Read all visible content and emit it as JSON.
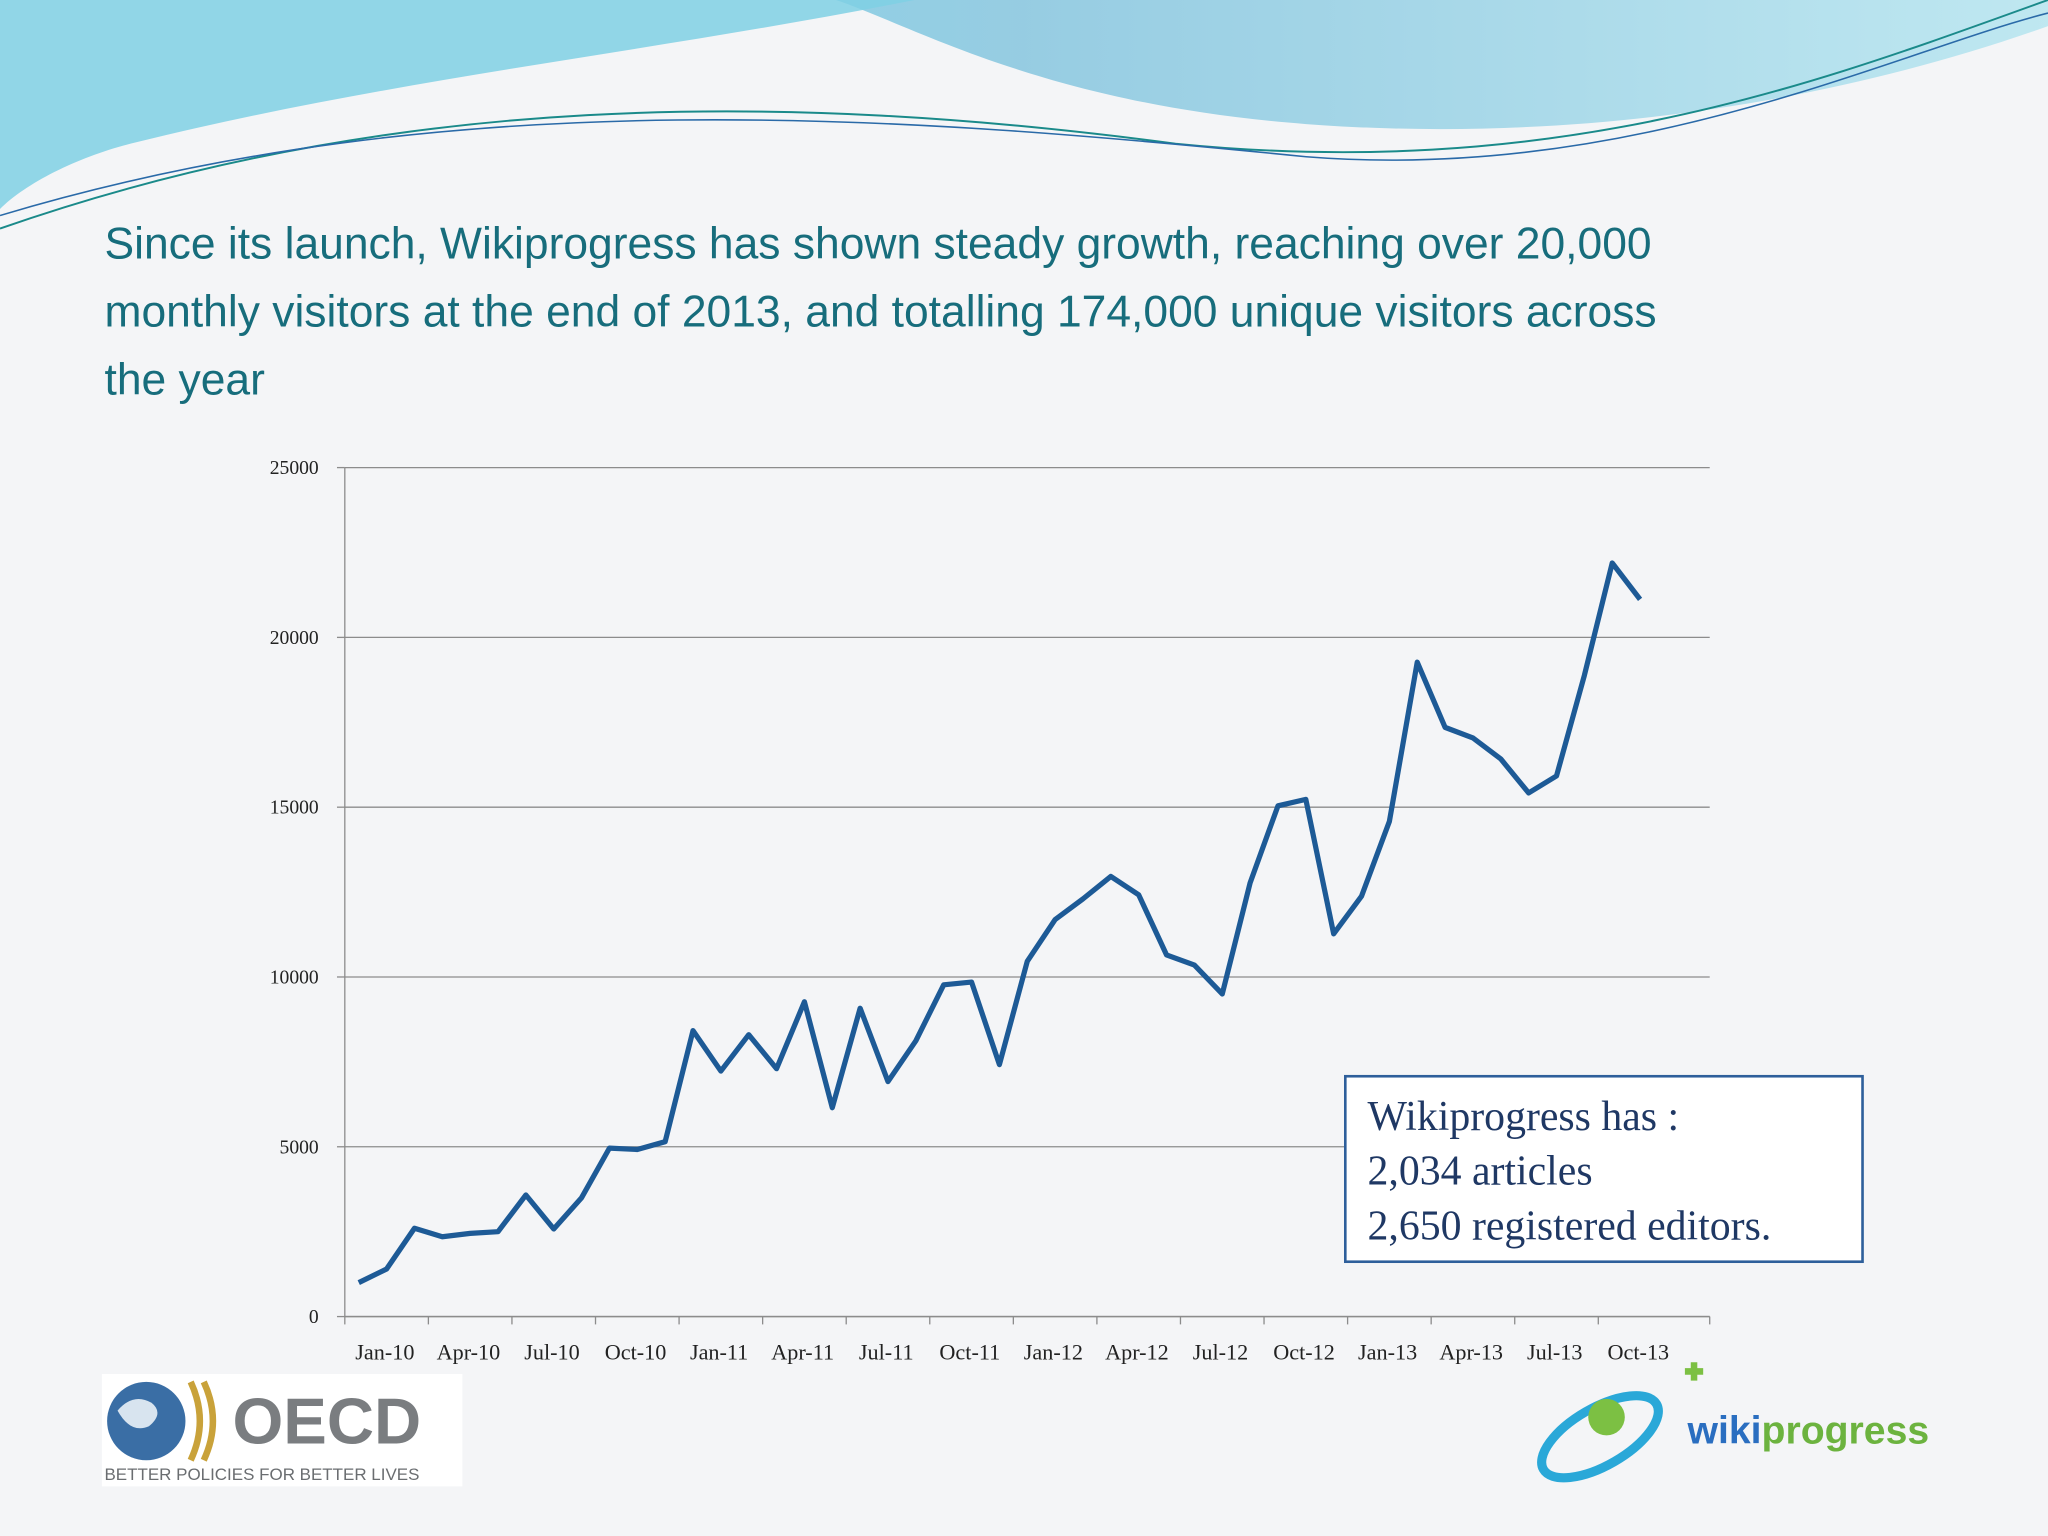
{
  "chart_data": {
    "type": "line",
    "title_lines": [
      "Since its launch, Wikiprogress has shown steady growth, reaching over 20,000",
      "monthly visitors at the end of 2013, and totalling 174,000 unique visitors across",
      "the year"
    ],
    "categories": [
      "Jan-10",
      null,
      null,
      "Apr-10",
      null,
      null,
      "Jul-10",
      null,
      null,
      "Oct-10",
      null,
      null,
      "Jan-11",
      null,
      null,
      "Apr-11",
      null,
      null,
      "Jul-11",
      null,
      null,
      "Oct-11",
      null,
      null,
      "Jan-12",
      null,
      null,
      "Apr-12",
      null,
      null,
      "Jul-12",
      null,
      null,
      "Oct-12",
      null,
      null,
      "Jan-13",
      null,
      null,
      "Apr-13",
      null,
      null,
      "Jul-13",
      null,
      null,
      "Oct-13",
      null
    ],
    "values": [
      1000,
      1400,
      2600,
      2350,
      2450,
      2500,
      3580,
      2580,
      3500,
      4960,
      4920,
      5150,
      8420,
      7230,
      8300,
      7300,
      9270,
      6150,
      9080,
      6920,
      8120,
      9770,
      9850,
      7420,
      10460,
      11690,
      12300,
      12960,
      12420,
      10650,
      10350,
      9500,
      12770,
      15040,
      15230,
      11270,
      12380,
      14580,
      19270,
      17350,
      17040,
      16420,
      15420,
      15920,
      18880,
      22190,
      21120
    ],
    "color": "#1d5a96",
    "ylim": [
      0,
      25000
    ],
    "yticks": [
      0,
      5000,
      10000,
      15000,
      20000,
      25000
    ],
    "grid": true,
    "annotation_lines": [
      "Wikiprogress has :",
      "2,034 articles",
      "2,650 registered editors."
    ]
  },
  "logos": {
    "oecd": "OECD",
    "oecd_tagline": "BETTER POLICIES FOR BETTER LIVES",
    "wiki": "wiki",
    "progress": "progress"
  }
}
